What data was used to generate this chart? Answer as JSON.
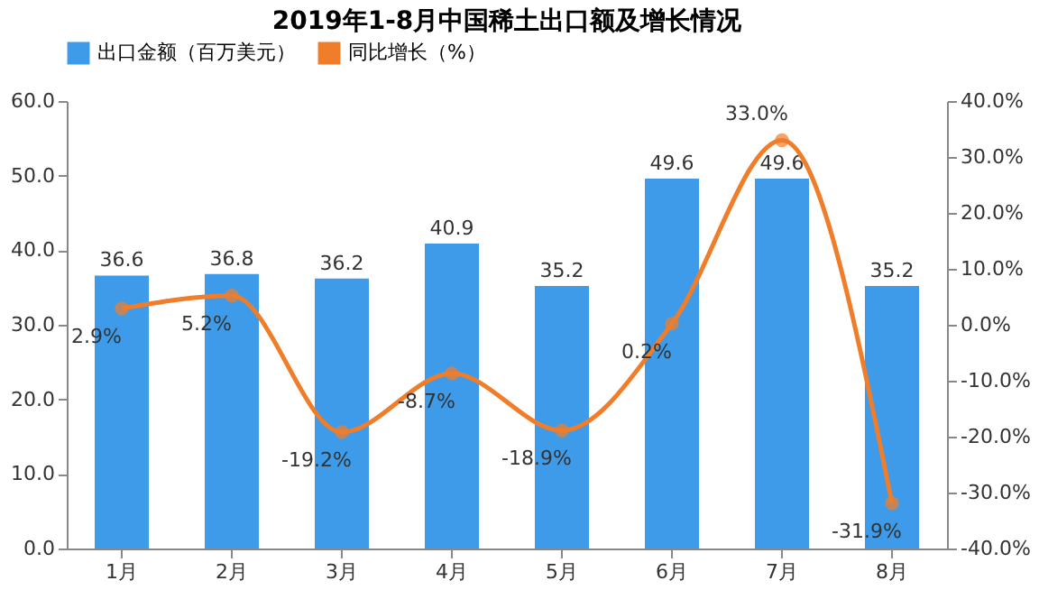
{
  "chart_data": {
    "type": "bar",
    "title": "2019年1-8月中国稀土出口额及增长情况",
    "categories": [
      "1月",
      "2月",
      "3月",
      "4月",
      "5月",
      "6月",
      "7月",
      "8月"
    ],
    "series": [
      {
        "name": "出口金额（百万美元）",
        "type": "bar",
        "color": "#3d9be9",
        "values": [
          36.6,
          36.8,
          36.2,
          40.9,
          35.2,
          49.6,
          49.6,
          35.2
        ],
        "value_labels": [
          "36.6",
          "36.8",
          "36.2",
          "40.9",
          "35.2",
          "49.6",
          "49.6",
          "35.2"
        ]
      },
      {
        "name": "同比增长（%）",
        "type": "line",
        "axis": "y2",
        "color": "#f07d2a",
        "marker": "circle",
        "values": [
          2.9,
          5.2,
          -19.2,
          -8.7,
          -18.9,
          0.2,
          33.0,
          -31.9
        ],
        "value_labels": [
          "2.9%",
          "5.2%",
          "-19.2%",
          "-8.7%",
          "-18.9%",
          "0.2%",
          "33.0%",
          "-31.9%"
        ]
      }
    ],
    "ylim": [
      0,
      60
    ],
    "yticks": [
      {
        "value": 0,
        "label": "0.0"
      },
      {
        "value": 10,
        "label": "10.0"
      },
      {
        "value": 20,
        "label": "20.0"
      },
      {
        "value": 30,
        "label": "30.0"
      },
      {
        "value": 40,
        "label": "40.0"
      },
      {
        "value": 50,
        "label": "50.0"
      },
      {
        "value": 60,
        "label": "60.0"
      }
    ],
    "y2lim": [
      -40,
      40
    ],
    "y2ticks": [
      {
        "value": -40,
        "label": "-40.0%"
      },
      {
        "value": -30,
        "label": "-30.0%"
      },
      {
        "value": -20,
        "label": "-20.0%"
      },
      {
        "value": -10,
        "label": "-10.0%"
      },
      {
        "value": 0,
        "label": "0.0%"
      },
      {
        "value": 10,
        "label": "10.0%"
      },
      {
        "value": 20,
        "label": "20.0%"
      },
      {
        "value": 30,
        "label": "30.0%"
      },
      {
        "value": 40,
        "label": "40.0%"
      }
    ],
    "legend": "top",
    "grid": false
  }
}
